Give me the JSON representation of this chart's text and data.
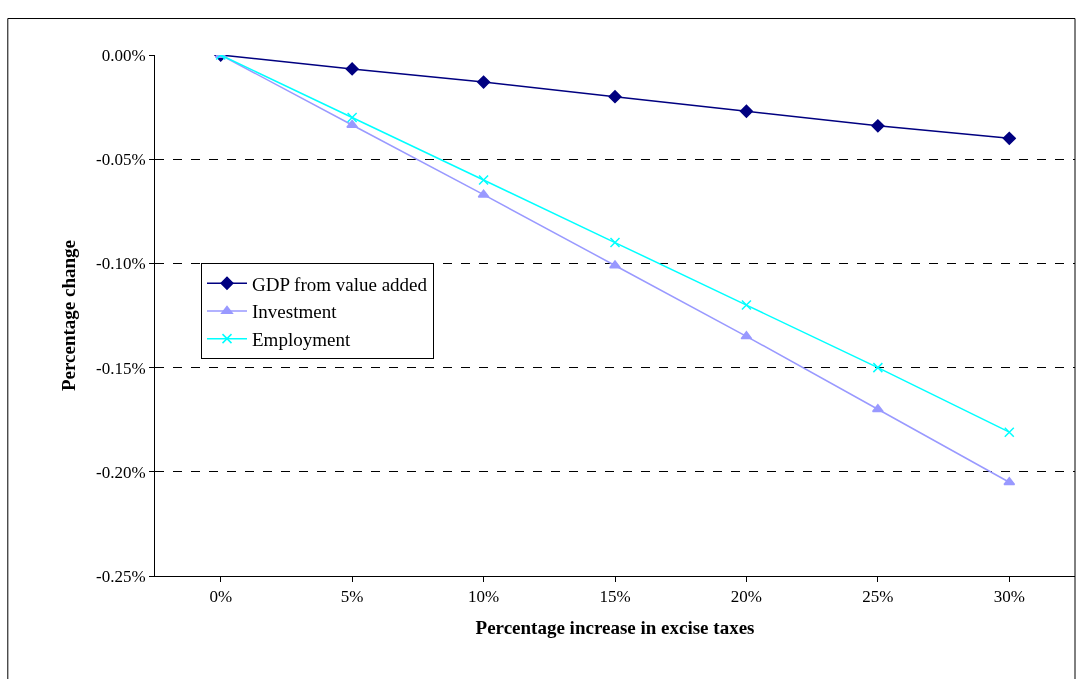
{
  "chart_data": {
    "type": "line",
    "xlabel": "Percentage increase in excise taxes",
    "ylabel": "Percentage change",
    "categories": [
      "0%",
      "5%",
      "10%",
      "15%",
      "20%",
      "25%",
      "30%"
    ],
    "series": [
      {
        "name": "GDP from value added",
        "color": "#000080",
        "marker": "diamond",
        "values": [
          0,
          -0.0067,
          -0.013,
          -0.02,
          -0.027,
          -0.034,
          -0.04
        ]
      },
      {
        "name": "Investment",
        "color": "#9999ff",
        "marker": "triangle",
        "values": [
          0,
          -0.0336,
          -0.067,
          -0.101,
          -0.135,
          -0.17,
          -0.205
        ]
      },
      {
        "name": "Employment",
        "color": "#00ffff",
        "marker": "cross",
        "values": [
          0,
          -0.03,
          -0.06,
          -0.09,
          -0.12,
          -0.15,
          -0.181
        ]
      }
    ],
    "ylim": [
      -0.25,
      0
    ],
    "yticks": [
      {
        "value": 0,
        "label": "0.00%"
      },
      {
        "value": -0.05,
        "label": "-0.05%"
      },
      {
        "value": -0.1,
        "label": "-0.10%"
      },
      {
        "value": -0.15,
        "label": "-0.15%"
      },
      {
        "value": -0.2,
        "label": "-0.20%"
      },
      {
        "value": -0.25,
        "label": "-0.25%"
      }
    ],
    "grid": "y",
    "legend": "left",
    "line_style": "solid"
  }
}
